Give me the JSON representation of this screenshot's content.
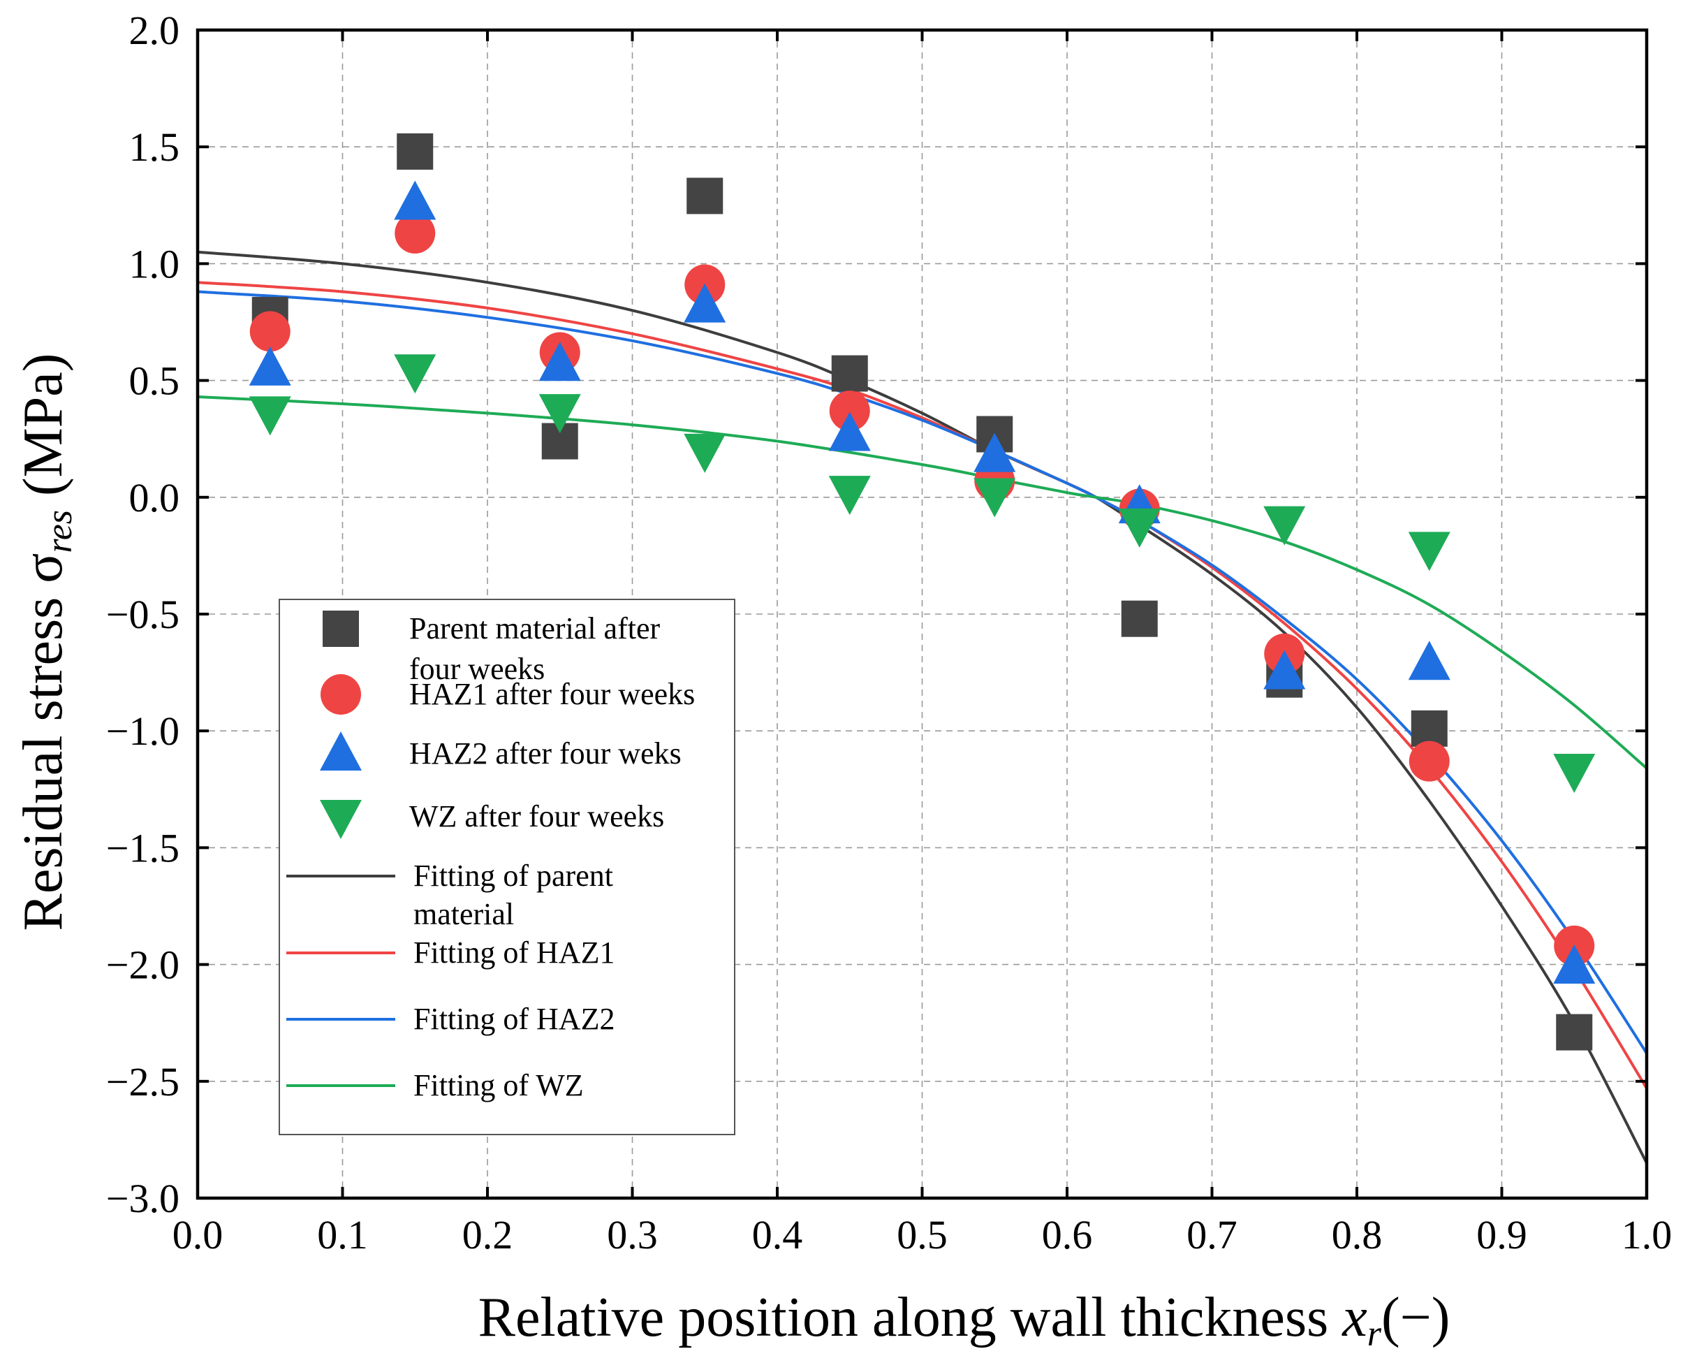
{
  "chart_data": {
    "type": "scatter",
    "xlabel_prefix": "Relative position along wall thickness ",
    "xlabel_var": "x",
    "xlabel_sub": "r",
    "xlabel_suffix": "(−)",
    "ylabel_prefix": "Residual stress ",
    "ylabel_sigma": "σ",
    "ylabel_sub": "res",
    "ylabel_suffix": " (MPa)",
    "xlim": [
      0.0,
      1.0
    ],
    "ylim": [
      -3.0,
      2.0
    ],
    "xticks": [
      0.0,
      0.1,
      0.2,
      0.3,
      0.4,
      0.5,
      0.6,
      0.7,
      0.8,
      0.9,
      1.0
    ],
    "xtick_labels": [
      "0.0",
      "0.1",
      "0.2",
      "0.3",
      "0.4",
      "0.5",
      "0.6",
      "0.7",
      "0.8",
      "0.9",
      "1.0"
    ],
    "yticks": [
      2.0,
      1.5,
      1.0,
      0.5,
      0.0,
      -0.5,
      -1.0,
      -1.5,
      -2.0,
      -2.5,
      -3.0
    ],
    "ytick_labels": [
      "2.0",
      "1.5",
      "1.0",
      "0.5",
      "0.0",
      "−0.5",
      "−1.0",
      "−1.5",
      "−2.0",
      "−2.5",
      "−3.0"
    ],
    "grid": true,
    "legend_position": "lower-left",
    "series": [
      {
        "name": "Parent material after four weeks",
        "legend_lines": [
          "Parent material after",
          "four weeks"
        ],
        "marker": "square",
        "color": "#444444",
        "x": [
          0.05,
          0.15,
          0.25,
          0.35,
          0.45,
          0.55,
          0.65,
          0.75,
          0.85,
          0.95
        ],
        "y": [
          0.78,
          1.48,
          0.24,
          1.29,
          0.53,
          0.27,
          -0.52,
          -0.78,
          -0.99,
          -2.29
        ]
      },
      {
        "name": "HAZ1 after four weeks",
        "legend_lines": [
          "HAZ1 after four weeks"
        ],
        "marker": "circle",
        "color": "#ef4444",
        "x": [
          0.05,
          0.15,
          0.25,
          0.35,
          0.45,
          0.55,
          0.65,
          0.75,
          0.85,
          0.95
        ],
        "y": [
          0.71,
          1.13,
          0.62,
          0.91,
          0.37,
          0.07,
          -0.05,
          -0.67,
          -1.13,
          -1.92
        ]
      },
      {
        "name": "HAZ2 after four weks",
        "legend_lines": [
          "HAZ2 after four weks"
        ],
        "marker": "triangle-up",
        "color": "#1f6fe0",
        "x": [
          0.05,
          0.15,
          0.25,
          0.35,
          0.45,
          0.55,
          0.65,
          0.75,
          0.85,
          0.95
        ],
        "y": [
          0.55,
          1.26,
          0.57,
          0.82,
          0.27,
          0.18,
          -0.04,
          -0.75,
          -0.71,
          -2.01
        ]
      },
      {
        "name": "WZ after four weeks",
        "legend_lines": [
          "WZ after four weeks"
        ],
        "marker": "triangle-down",
        "color": "#1eab56",
        "x": [
          0.05,
          0.15,
          0.25,
          0.35,
          0.45,
          0.55,
          0.65,
          0.75,
          0.85,
          0.95
        ],
        "y": [
          0.36,
          0.54,
          0.37,
          0.2,
          0.02,
          0.01,
          -0.12,
          -0.11,
          -0.22,
          -1.17
        ]
      }
    ],
    "fits": [
      {
        "name": "Fitting of parent material",
        "legend_lines": [
          "Fitting of parent",
          "material"
        ],
        "color": "#3d3d3d",
        "x": [
          0.0,
          0.1,
          0.2,
          0.3,
          0.4,
          0.45,
          0.5,
          0.55,
          0.6,
          0.62,
          0.65,
          0.7,
          0.75,
          0.8,
          0.85,
          0.9,
          0.95,
          1.0
        ],
        "y": [
          1.05,
          1.0,
          0.92,
          0.8,
          0.62,
          0.5,
          0.36,
          0.2,
          0.06,
          0.0,
          -0.12,
          -0.33,
          -0.58,
          -0.9,
          -1.3,
          -1.75,
          -2.25,
          -2.85
        ]
      },
      {
        "name": "Fitting of HAZ1",
        "legend_lines": [
          "Fitting of HAZ1"
        ],
        "color": "#ef4444",
        "x": [
          0.0,
          0.1,
          0.2,
          0.3,
          0.4,
          0.45,
          0.5,
          0.55,
          0.6,
          0.62,
          0.65,
          0.7,
          0.75,
          0.8,
          0.85,
          0.9,
          0.95,
          1.0
        ],
        "y": [
          0.92,
          0.88,
          0.81,
          0.7,
          0.55,
          0.46,
          0.34,
          0.2,
          0.06,
          0.0,
          -0.1,
          -0.3,
          -0.54,
          -0.82,
          -1.16,
          -1.56,
          -2.02,
          -2.53
        ]
      },
      {
        "name": "Fitting of HAZ2",
        "legend_lines": [
          "Fitting of HAZ2"
        ],
        "color": "#1f6fe0",
        "x": [
          0.0,
          0.1,
          0.2,
          0.3,
          0.4,
          0.45,
          0.5,
          0.55,
          0.6,
          0.62,
          0.65,
          0.7,
          0.75,
          0.8,
          0.85,
          0.9,
          0.95,
          1.0
        ],
        "y": [
          0.88,
          0.84,
          0.77,
          0.67,
          0.53,
          0.44,
          0.33,
          0.2,
          0.06,
          0.0,
          -0.1,
          -0.29,
          -0.52,
          -0.78,
          -1.1,
          -1.47,
          -1.9,
          -2.38
        ]
      },
      {
        "name": "Fitting of WZ",
        "legend_lines": [
          "Fitting of WZ"
        ],
        "color": "#1eab56",
        "x": [
          0.0,
          0.1,
          0.2,
          0.3,
          0.4,
          0.5,
          0.55,
          0.6,
          0.62,
          0.65,
          0.7,
          0.75,
          0.8,
          0.85,
          0.9,
          0.95,
          1.0
        ],
        "y": [
          0.43,
          0.4,
          0.36,
          0.31,
          0.24,
          0.14,
          0.08,
          0.02,
          0.0,
          -0.03,
          -0.1,
          -0.19,
          -0.31,
          -0.46,
          -0.66,
          -0.89,
          -1.16
        ]
      }
    ]
  }
}
